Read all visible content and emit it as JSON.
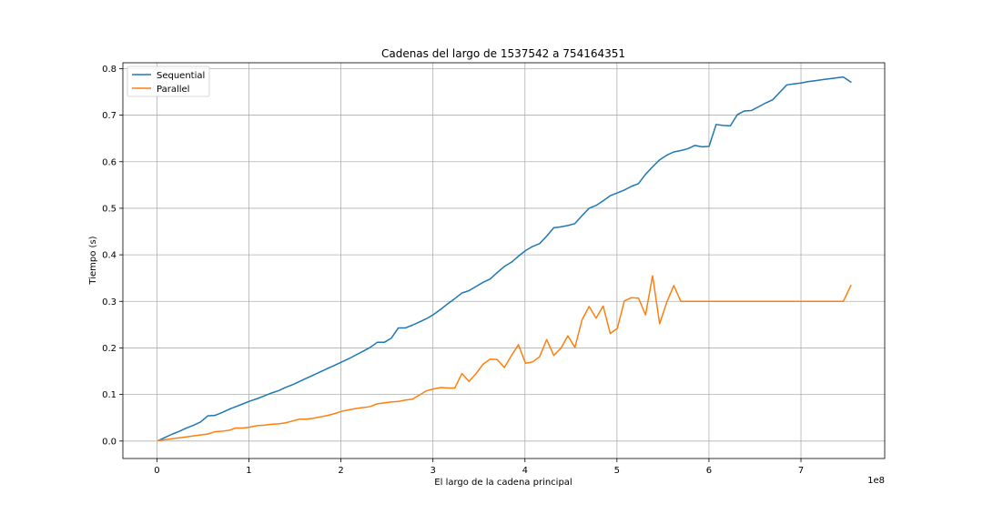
{
  "chart_data": {
    "type": "line",
    "title": "Cadenas del largo de 1537542 a 754164351",
    "xlabel": "El largo de la cadena principal",
    "ylabel": "Tiempo (s)",
    "x_offset_label": "1e8",
    "xlim": [
      -0.37,
      7.91
    ],
    "ylim": [
      -0.0375,
      0.8125
    ],
    "x_ticks": [
      0,
      1,
      2,
      3,
      4,
      5,
      6,
      7
    ],
    "x_tick_labels": [
      "0",
      "1",
      "2",
      "3",
      "4",
      "5",
      "6",
      "7"
    ],
    "y_ticks": [
      0.0,
      0.1,
      0.2,
      0.3,
      0.4,
      0.5,
      0.6,
      0.7,
      0.8
    ],
    "y_tick_labels": [
      "0.0",
      "0.1",
      "0.2",
      "0.3",
      "0.4",
      "0.5",
      "0.6",
      "0.7",
      "0.8"
    ],
    "grid": true,
    "legend_position": "upper-left",
    "colors": {
      "Sequential": "#1f77b4",
      "Parallel": "#ff7f0e"
    },
    "x": [
      0.015,
      0.092,
      0.168,
      0.245,
      0.322,
      0.399,
      0.475,
      0.552,
      0.629,
      0.706,
      0.782,
      0.859,
      0.936,
      1.013,
      1.089,
      1.166,
      1.243,
      1.32,
      1.396,
      1.473,
      1.55,
      1.627,
      1.703,
      1.78,
      1.857,
      1.934,
      2.01,
      2.087,
      2.164,
      2.241,
      2.317,
      2.394,
      2.471,
      2.548,
      2.624,
      2.701,
      2.778,
      2.855,
      2.931,
      3.008,
      3.085,
      3.162,
      3.238,
      3.315,
      3.392,
      3.469,
      3.545,
      3.622,
      3.699,
      3.776,
      3.852,
      3.929,
      4.006,
      4.083,
      4.159,
      4.236,
      4.313,
      4.39,
      4.466,
      4.543,
      4.62,
      4.697,
      4.773,
      4.85,
      4.927,
      5.004,
      5.08,
      5.157,
      5.234,
      5.311,
      5.387,
      5.464,
      5.541,
      5.618,
      5.694,
      5.771,
      5.848,
      5.925,
      6.001,
      6.078,
      6.155,
      6.232,
      6.308,
      6.385,
      6.462,
      6.539,
      6.615,
      6.692,
      6.769,
      6.846,
      6.922,
      6.999,
      7.076,
      7.153,
      7.229,
      7.306,
      7.383,
      7.46,
      7.542
    ],
    "series": [
      {
        "name": "Sequential",
        "values": [
          0.001,
          0.008,
          0.015,
          0.021,
          0.028,
          0.034,
          0.041,
          0.054,
          0.055,
          0.061,
          0.068,
          0.074,
          0.08,
          0.086,
          0.091,
          0.097,
          0.103,
          0.108,
          0.115,
          0.121,
          0.128,
          0.135,
          0.142,
          0.149,
          0.156,
          0.163,
          0.17,
          0.177,
          0.185,
          0.193,
          0.201,
          0.212,
          0.212,
          0.221,
          0.243,
          0.243,
          0.249,
          0.256,
          0.263,
          0.272,
          0.283,
          0.295,
          0.306,
          0.318,
          0.323,
          0.332,
          0.341,
          0.348,
          0.362,
          0.375,
          0.384,
          0.397,
          0.409,
          0.418,
          0.424,
          0.44,
          0.458,
          0.46,
          0.463,
          0.467,
          0.484,
          0.5,
          0.506,
          0.516,
          0.527,
          0.533,
          0.539,
          0.547,
          0.553,
          0.573,
          0.589,
          0.604,
          0.614,
          0.621,
          0.624,
          0.628,
          0.635,
          0.632,
          0.633,
          0.68,
          0.678,
          0.677,
          0.701,
          0.709,
          0.71,
          0.718,
          0.726,
          0.733,
          0.749,
          0.765,
          0.767,
          0.769,
          0.772,
          0.774,
          0.776,
          0.778,
          0.78,
          0.782,
          0.771
        ]
      },
      {
        "name": "Parallel",
        "values": [
          0.001,
          0.003,
          0.005,
          0.007,
          0.009,
          0.011,
          0.013,
          0.015,
          0.02,
          0.021,
          0.023,
          0.028,
          0.028,
          0.03,
          0.033,
          0.034,
          0.036,
          0.037,
          0.039,
          0.043,
          0.047,
          0.047,
          0.049,
          0.052,
          0.055,
          0.059,
          0.064,
          0.067,
          0.07,
          0.072,
          0.074,
          0.08,
          0.082,
          0.084,
          0.085,
          0.088,
          0.09,
          0.099,
          0.108,
          0.112,
          0.115,
          0.114,
          0.114,
          0.145,
          0.128,
          0.145,
          0.165,
          0.176,
          0.175,
          0.158,
          0.183,
          0.207,
          0.167,
          0.17,
          0.181,
          0.218,
          0.184,
          0.199,
          0.226,
          0.201,
          0.26,
          0.289,
          0.264,
          0.29,
          0.231,
          0.242,
          0.301,
          0.308,
          0.307,
          0.271,
          0.355,
          0.252,
          0.298,
          0.334,
          0.3,
          0.3,
          0.3,
          0.3,
          0.3,
          0.3,
          0.3,
          0.3,
          0.3,
          0.3,
          0.3,
          0.3,
          0.3,
          0.3,
          0.3,
          0.3,
          0.3,
          0.3,
          0.3,
          0.3,
          0.3,
          0.3,
          0.3,
          0.3,
          0.334
        ]
      }
    ]
  }
}
